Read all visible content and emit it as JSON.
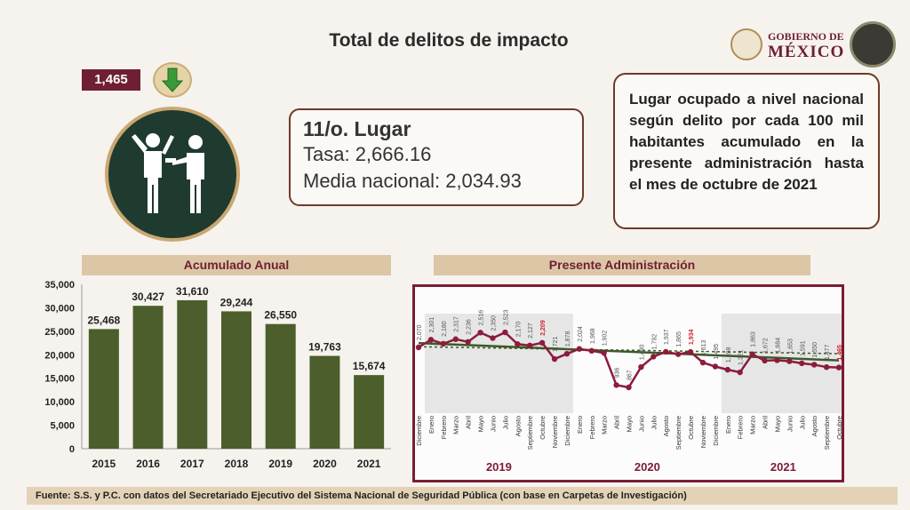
{
  "title": "Total de delitos de impacto",
  "current_badge": "1,465",
  "trend_icon": "arrow-down-icon",
  "crime_icon": "robbery-icon",
  "rank": {
    "place": "11/o. Lugar",
    "rate": "Tasa: 2,666.16",
    "national_mean": "Media nacional: 2,034.93"
  },
  "note": "Lugar ocupado a nivel nacional según delito por cada 100 mil habitantes acumulado en la presente administración hasta el mes de octubre de 2021",
  "logo": {
    "line1": "GOBIERNO DE",
    "line2": "MÉXICO",
    "seal": "México 2021"
  },
  "footer": "Fuente: S.S. y P.C. con datos del Secretariado Ejecutivo del Sistema Nacional de Seguridad Pública (con base en Carpetas de Investigación)",
  "colors": {
    "bar": "#4b5e2b",
    "line": "#8c1c3c",
    "trend": "#3d5a2a",
    "highlight": "#d4202f"
  },
  "chart_data": [
    {
      "type": "bar",
      "title": "Acumulado Anual",
      "categories": [
        "2015",
        "2016",
        "2017",
        "2018",
        "2019",
        "2020",
        "2021"
      ],
      "values": [
        25468,
        30427,
        31610,
        29244,
        26550,
        19763,
        15674
      ],
      "value_labels": [
        "25,468",
        "30,427",
        "31,610",
        "29,244",
        "26,550",
        "19,763",
        "15,674"
      ],
      "yticks": [
        "35,000",
        "30,000",
        "25,000",
        "20,000",
        "15,000",
        "10,000",
        "5,000",
        "0"
      ],
      "ylim": [
        0,
        35000
      ]
    },
    {
      "type": "line",
      "title": "Presente Administración",
      "months": [
        "Diciembre",
        "Enero",
        "Febrero",
        "Marzo",
        "Abril",
        "Mayo",
        "Junio",
        "Julio",
        "Agosto",
        "Septiembre",
        "Octubre",
        "Noviembre",
        "Diciembre",
        "Enero",
        "Febrero",
        "Marzo",
        "Abril",
        "Mayo",
        "Junio",
        "Julio",
        "Agosto",
        "Septiembre",
        "Octubre",
        "Noviembre",
        "Diciembre",
        "Enero",
        "Febrero",
        "Marzo",
        "Abril",
        "Mayo",
        "Junio",
        "Julio",
        "Agosto",
        "Septiembre",
        "Octubre"
      ],
      "values": [
        2070,
        2301,
        2180,
        2317,
        2236,
        2516,
        2350,
        2523,
        2170,
        2127,
        2209,
        1721,
        1878,
        2024,
        1968,
        1902,
        936,
        867,
        1480,
        1792,
        1937,
        1865,
        1934,
        1613,
        1495,
        1398,
        1321,
        1863,
        1672,
        1684,
        1653,
        1591,
        1550,
        1477,
        1465
      ],
      "value_labels": [
        "2,070",
        "2,301",
        "2,180",
        "2,317",
        "2,236",
        "2,516",
        "2,350",
        "2,523",
        "2,170",
        "2,127",
        "2,209",
        "1,721",
        "1,878",
        "2,024",
        "1,968",
        "1,902",
        "936",
        "867",
        "1,480",
        "1,792",
        "1,937",
        "1,865",
        "1,934",
        "1,613",
        "1,495",
        "1,398",
        "1,321",
        "1,863",
        "1,672",
        "1,684",
        "1,653",
        "1,591",
        "1,550",
        "1,477",
        "1,465"
      ],
      "highlighted": [
        10,
        22,
        34
      ],
      "years": [
        "2019",
        "2020",
        "2021"
      ],
      "trend": {
        "start": 2200,
        "end": 1680
      },
      "mean_line": {
        "start": 2090,
        "end": 1880
      }
    }
  ]
}
